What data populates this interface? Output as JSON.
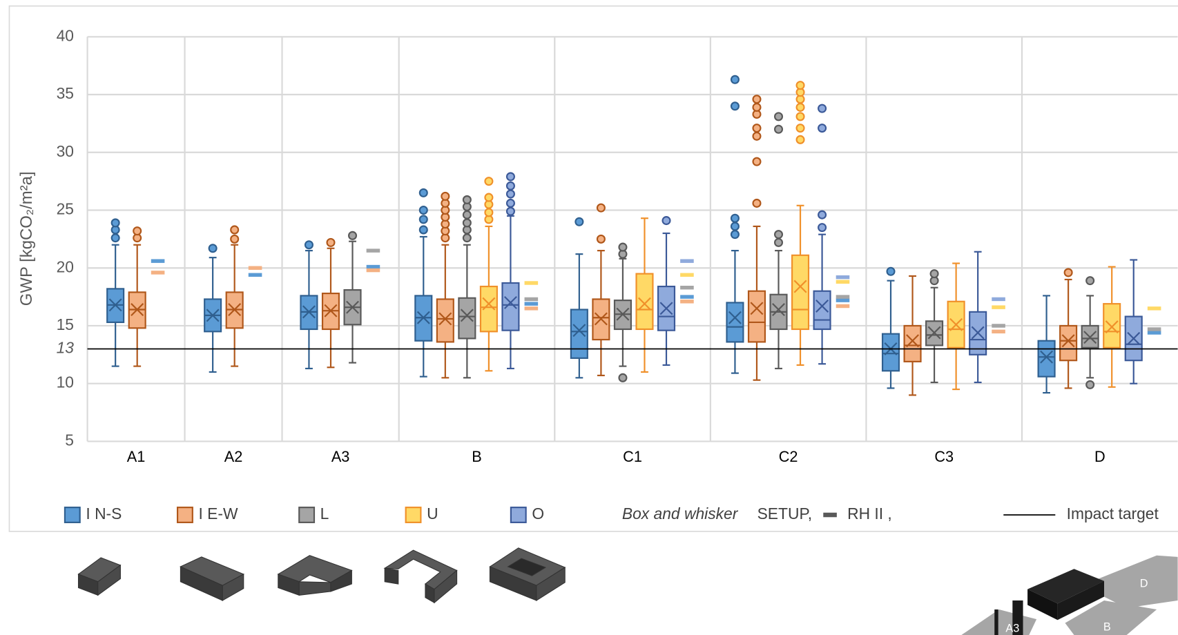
{
  "chart_data": {
    "type": "box",
    "y_label": "GWP [kgCO₂/m²a]",
    "categories": [
      "A1",
      "A2",
      "A3",
      "B",
      "C1",
      "C2",
      "C3",
      "D"
    ],
    "ylim": [
      5,
      40
    ],
    "yticks": [
      5,
      10,
      15,
      20,
      25,
      30,
      35,
      40
    ],
    "grid": true,
    "target": 13,
    "target_label": "Impact target",
    "legend_note_italic": "Box and whisker",
    "legend_note": "SETUP,",
    "rh_label": "RH II  ,",
    "series": [
      {
        "name": "I N-S",
        "color": "#5b9bd5",
        "stroke": "#2f5f8f",
        "boxes": [
          {
            "min": 11.5,
            "q1": 15.3,
            "median": 16.8,
            "q3": 18.2,
            "max": 22.0,
            "mean": 16.8,
            "outliers": [
              22.6,
              23.3,
              23.9
            ]
          },
          {
            "min": 11.0,
            "q1": 14.5,
            "median": 15.9,
            "q3": 17.3,
            "max": 20.9,
            "mean": 15.9,
            "outliers": [
              21.7
            ]
          },
          {
            "min": 11.3,
            "q1": 14.7,
            "median": 16.2,
            "q3": 17.6,
            "max": 21.5,
            "mean": 16.2,
            "outliers": [
              22.0
            ]
          },
          {
            "min": 10.6,
            "q1": 13.7,
            "median": 15.7,
            "q3": 17.6,
            "max": 22.7,
            "mean": 15.7,
            "outliers": [
              23.3,
              24.2,
              25.0,
              26.5
            ]
          },
          {
            "min": 10.5,
            "q1": 12.2,
            "median": 14.5,
            "q3": 16.4,
            "max": 21.2,
            "mean": 14.6,
            "outliers": [
              24.0
            ]
          },
          {
            "min": 10.9,
            "q1": 13.6,
            "median": 14.9,
            "q3": 17.0,
            "max": 21.5,
            "mean": 15.7,
            "outliers": [
              22.9,
              23.6,
              24.3,
              34.0,
              36.3
            ]
          },
          {
            "min": 9.6,
            "q1": 11.1,
            "median": 12.6,
            "q3": 14.3,
            "max": 18.9,
            "mean": 13.0,
            "outliers": [
              19.7
            ]
          },
          {
            "min": 9.2,
            "q1": 10.6,
            "median": 12.3,
            "q3": 13.7,
            "max": 17.6,
            "mean": 12.3,
            "outliers": []
          }
        ],
        "rh": [
          20.6,
          19.4,
          20.1,
          16.9,
          17.5,
          17.2,
          null,
          14.4
        ]
      },
      {
        "name": "I E-W",
        "color": "#f4b183",
        "stroke": "#b0571a",
        "boxes": [
          {
            "min": 11.5,
            "q1": 14.8,
            "median": 16.4,
            "q3": 17.9,
            "max": 22.0,
            "mean": 16.4,
            "outliers": [
              22.6,
              23.2
            ]
          },
          {
            "min": 11.5,
            "q1": 14.8,
            "median": 16.4,
            "q3": 17.9,
            "max": 22.0,
            "mean": 16.4,
            "outliers": [
              22.5,
              23.3
            ]
          },
          {
            "min": 11.4,
            "q1": 14.7,
            "median": 16.3,
            "q3": 17.8,
            "max": 21.7,
            "mean": 16.3,
            "outliers": [
              22.2
            ]
          },
          {
            "min": 10.5,
            "q1": 13.6,
            "median": 15.6,
            "q3": 17.3,
            "max": 22.0,
            "mean": 15.6,
            "outliers": [
              22.6,
              23.2,
              23.8,
              24.4,
              25.0,
              25.6,
              26.2
            ]
          },
          {
            "min": 10.7,
            "q1": 13.8,
            "median": 15.7,
            "q3": 17.3,
            "max": 21.5,
            "mean": 15.6,
            "outliers": [
              22.5,
              25.2
            ]
          },
          {
            "min": 10.3,
            "q1": 13.6,
            "median": 15.3,
            "q3": 18.0,
            "max": 23.6,
            "mean": 16.5,
            "outliers": [
              25.6,
              29.2,
              31.4,
              32.1,
              33.3,
              33.9,
              34.6
            ]
          },
          {
            "min": 9.0,
            "q1": 11.9,
            "median": 13.3,
            "q3": 15.0,
            "max": 19.3,
            "mean": 13.7,
            "outliers": []
          },
          {
            "min": 9.6,
            "q1": 12.0,
            "median": 13.7,
            "q3": 15.0,
            "max": 19.0,
            "mean": 13.7,
            "outliers": [
              19.6
            ]
          }
        ],
        "rh": [
          19.6,
          20.0,
          19.8,
          16.5,
          17.1,
          16.7,
          14.5,
          null
        ]
      },
      {
        "name": "L",
        "color": "#a5a5a5",
        "stroke": "#595959",
        "boxes": [
          null,
          null,
          {
            "min": 11.8,
            "q1": 15.1,
            "median": 16.6,
            "q3": 18.1,
            "max": 22.3,
            "mean": 16.6,
            "outliers": [
              22.8
            ]
          },
          {
            "min": 10.5,
            "q1": 13.9,
            "median": 15.8,
            "q3": 17.4,
            "max": 22.0,
            "mean": 15.9,
            "outliers": [
              22.6,
              23.3,
              23.9,
              24.6,
              25.3,
              25.9
            ]
          },
          {
            "min": 11.5,
            "q1": 14.7,
            "median": 16.0,
            "q3": 17.2,
            "max": 20.8,
            "mean": 16.0,
            "outliers": [
              10.5,
              21.2,
              21.8
            ]
          },
          {
            "min": 11.3,
            "q1": 14.7,
            "median": 16.2,
            "q3": 17.7,
            "max": 21.5,
            "mean": 16.4,
            "outliers": [
              22.2,
              22.9,
              32.0,
              33.1
            ]
          },
          {
            "min": 10.1,
            "q1": 13.3,
            "median": 14.2,
            "q3": 15.4,
            "max": 18.3,
            "mean": 14.4,
            "outliers": [
              18.9,
              19.5
            ]
          },
          {
            "min": 10.5,
            "q1": 13.1,
            "median": 13.9,
            "q3": 15.0,
            "max": 17.6,
            "mean": 14.0,
            "outliers": [
              9.9,
              18.9
            ]
          }
        ],
        "rh": [
          null,
          null,
          21.5,
          17.3,
          18.3,
          17.5,
          15.0,
          14.7
        ]
      },
      {
        "name": "U",
        "color": "#ffd966",
        "stroke": "#f0902a",
        "boxes": [
          null,
          null,
          null,
          {
            "min": 11.1,
            "q1": 14.5,
            "median": 16.6,
            "q3": 18.4,
            "max": 23.6,
            "mean": 16.9,
            "outliers": [
              24.2,
              24.8,
              25.5,
              26.1,
              27.5
            ]
          },
          {
            "min": 11.0,
            "q1": 14.7,
            "median": 16.4,
            "q3": 19.5,
            "max": 24.3,
            "mean": 16.9,
            "outliers": []
          },
          {
            "min": 11.6,
            "q1": 14.7,
            "median": 16.4,
            "q3": 21.1,
            "max": 25.4,
            "mean": 18.4,
            "outliers": [
              31.1,
              32.1,
              33.1,
              33.9,
              34.6,
              35.2,
              35.8
            ]
          },
          {
            "min": 9.5,
            "q1": 13.1,
            "median": 14.7,
            "q3": 17.1,
            "max": 20.4,
            "mean": 15.1,
            "outliers": []
          },
          {
            "min": 9.7,
            "q1": 13.1,
            "median": 14.5,
            "q3": 16.9,
            "max": 20.1,
            "mean": 14.9,
            "outliers": []
          }
        ],
        "rh": [
          null,
          null,
          null,
          18.7,
          19.4,
          18.8,
          16.6,
          16.5
        ]
      },
      {
        "name": "O",
        "color": "#8faadc",
        "stroke": "#3b5998",
        "boxes": [
          null,
          null,
          null,
          {
            "min": 11.3,
            "q1": 14.6,
            "median": 16.8,
            "q3": 18.7,
            "max": 24.5,
            "mean": 17.0,
            "outliers": [
              24.9,
              25.6,
              26.4,
              27.1,
              27.9
            ]
          },
          {
            "min": 11.6,
            "q1": 14.6,
            "median": 15.8,
            "q3": 18.4,
            "max": 23.0,
            "mean": 16.5,
            "outliers": [
              24.1
            ]
          },
          {
            "min": 11.7,
            "q1": 14.7,
            "median": 15.5,
            "q3": 18.0,
            "max": 22.9,
            "mean": 16.7,
            "outliers": [
              23.5,
              24.6,
              32.1,
              33.8
            ]
          },
          {
            "min": 10.1,
            "q1": 12.5,
            "median": 13.8,
            "q3": 16.2,
            "max": 21.4,
            "mean": 14.4,
            "outliers": []
          },
          {
            "min": 10.0,
            "q1": 12.0,
            "median": 13.4,
            "q3": 15.8,
            "max": 20.7,
            "mean": 13.9,
            "outliers": []
          }
        ],
        "rh": [
          null,
          null,
          null,
          null,
          20.6,
          19.2,
          17.3,
          null
        ]
      }
    ]
  },
  "site_labels": [
    "A3",
    "B",
    "D"
  ]
}
